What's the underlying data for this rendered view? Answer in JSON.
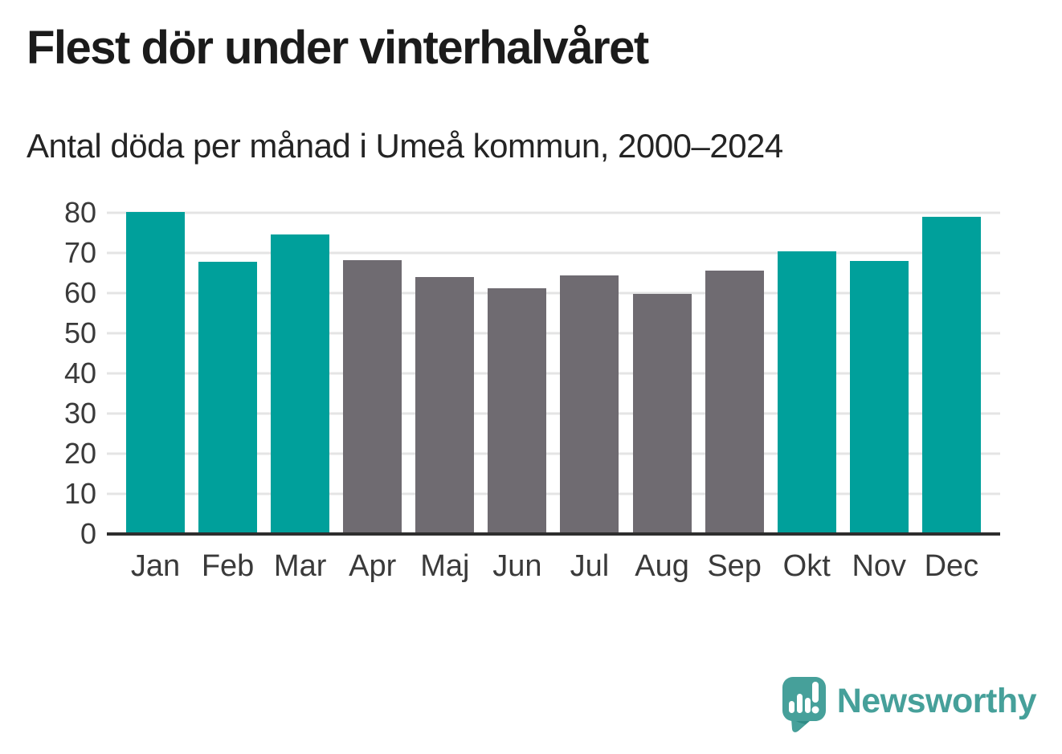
{
  "page": {
    "title": "Flest dör under vinterhalvåret",
    "subtitle": "Antal döda per månad i Umeå kommun, 2000–2024",
    "background_color": "#ffffff"
  },
  "chart_data": {
    "type": "bar",
    "title": "Flest dör under vinterhalvåret",
    "subtitle": "Antal döda per månad i Umeå kommun, 2000–2024",
    "categories": [
      "Jan",
      "Feb",
      "Mar",
      "Apr",
      "Maj",
      "Jun",
      "Jul",
      "Aug",
      "Sep",
      "Okt",
      "Nov",
      "Dec"
    ],
    "values": [
      80.2,
      67.9,
      74.6,
      68.3,
      64.0,
      61.2,
      64.4,
      59.9,
      65.7,
      70.4,
      68.0,
      79.0
    ],
    "bar_colors": [
      "#00a09b",
      "#00a09b",
      "#00a09b",
      "#6f6b71",
      "#6f6b71",
      "#6f6b71",
      "#6f6b71",
      "#6f6b71",
      "#6f6b71",
      "#00a09b",
      "#00a09b",
      "#00a09b"
    ],
    "highlight_note": "winter months (Okt–Mar) teal, summer months (Apr–Sep) gray",
    "winter_color": "#00a09b",
    "summer_color": "#6f6b71",
    "xlabel": "",
    "ylabel": "",
    "ylim": [
      0,
      80
    ],
    "yticks": [
      0,
      10,
      20,
      30,
      40,
      50,
      60,
      70,
      80
    ],
    "grid": true,
    "gridline_color": "#e4e4e4",
    "axis_line_color": "#2e2e2e",
    "tick_label_color": "#3a3a3a",
    "legend": "none"
  },
  "branding": {
    "logo_text": "Newsworthy",
    "logo_icon": "newsworthy-speech-bubble-bar-chart-icon",
    "logo_color": "#46a09a"
  }
}
